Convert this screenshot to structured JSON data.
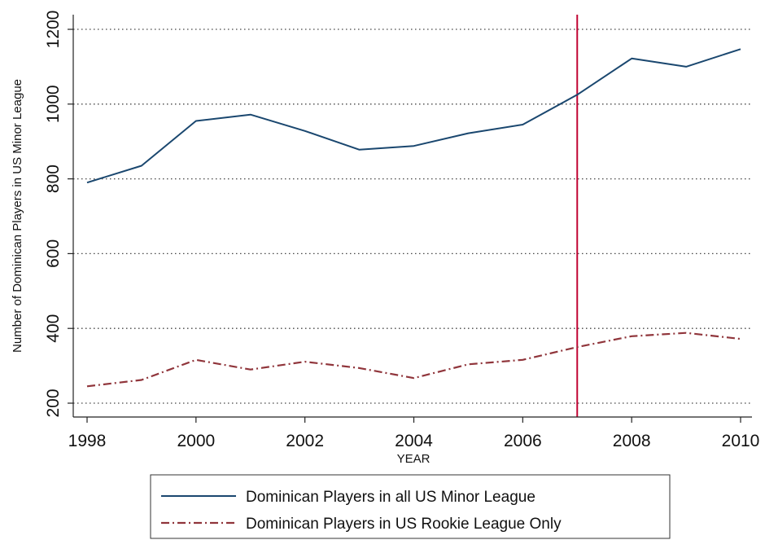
{
  "chart_data": {
    "type": "line",
    "title": "",
    "xlabel": "YEAR",
    "ylabel": "Number of Dominican Players in US Minor League",
    "xlim": [
      1998,
      2010
    ],
    "ylim": [
      180,
      1240
    ],
    "xticks": [
      1998,
      2000,
      2002,
      2004,
      2006,
      2008,
      2010
    ],
    "xtick_labels": [
      "1998",
      "2000",
      "2002",
      "2004",
      "2006",
      "2008",
      "2010"
    ],
    "yticks": [
      200,
      400,
      600,
      800,
      1000,
      1200
    ],
    "ytick_labels": [
      "200",
      "400",
      "600",
      "800",
      "1000",
      "1200"
    ],
    "grid": "horizontal-dotted",
    "x": [
      1998,
      1999,
      2000,
      2001,
      2002,
      2003,
      2004,
      2005,
      2006,
      2007,
      2008,
      2009,
      2010
    ],
    "series": [
      {
        "name": "Dominican Players in all US Minor League",
        "style": "solid",
        "color": "#1a476f",
        "values": [
          790,
          835,
          955,
          972,
          928,
          878,
          888,
          922,
          945,
          1025,
          1122,
          1100,
          1147
        ]
      },
      {
        "name": "Dominican Players in US Rookie League Only",
        "style": "dash-dot",
        "color": "#90353b",
        "values": [
          245,
          262,
          316,
          290,
          311,
          294,
          267,
          304,
          316,
          350,
          379,
          388,
          372
        ]
      }
    ],
    "reference_line": {
      "x": 2007,
      "color": "#c10534"
    },
    "legend_position": "bottom"
  }
}
